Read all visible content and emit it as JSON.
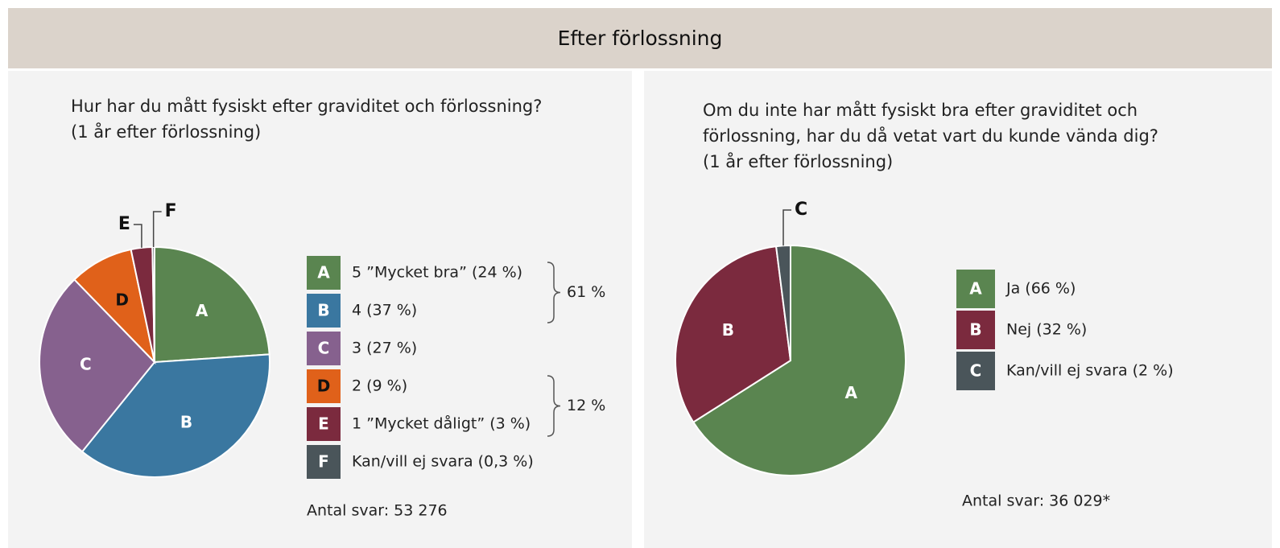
{
  "header": {
    "title": "Efter förlossning"
  },
  "chart_data": [
    {
      "type": "pie",
      "title": "Hur har du mått fysiskt efter graviditet och förlossning?",
      "subtitle": "(1 år efter förlossning)",
      "categories": [
        "A",
        "B",
        "C",
        "D",
        "E",
        "F"
      ],
      "labels": [
        "5 ”Mycket bra” (24 %)",
        "4 (37 %)",
        "3 (27 %)",
        "2 (9 %)",
        "1 ”Mycket dåligt” (3 %)",
        "Kan/vill ej svara (0,3 %)"
      ],
      "values": [
        24,
        37,
        27,
        9,
        3,
        0.3
      ],
      "colors": [
        "#5a8550",
        "#3a77a0",
        "#86618e",
        "#e0611a",
        "#7b2a3e",
        "#4a555a"
      ],
      "group_labels": [
        "61 %",
        "12 %"
      ],
      "footnote": "Antal svar: 53 276"
    },
    {
      "type": "pie",
      "title": "Om du inte har mått fysiskt bra efter graviditet och förlossning, har du då vetat vart du kunde vända dig?",
      "subtitle": "(1 år efter förlossning)",
      "categories": [
        "A",
        "B",
        "C"
      ],
      "labels": [
        "Ja (66 %)",
        "Nej (32 %)",
        "Kan/vill ej svara (2 %)"
      ],
      "values": [
        66,
        32,
        2
      ],
      "colors": [
        "#5a8550",
        "#7b2a3e",
        "#4a555a"
      ],
      "footnote": "Antal svar: 36 029*"
    }
  ]
}
